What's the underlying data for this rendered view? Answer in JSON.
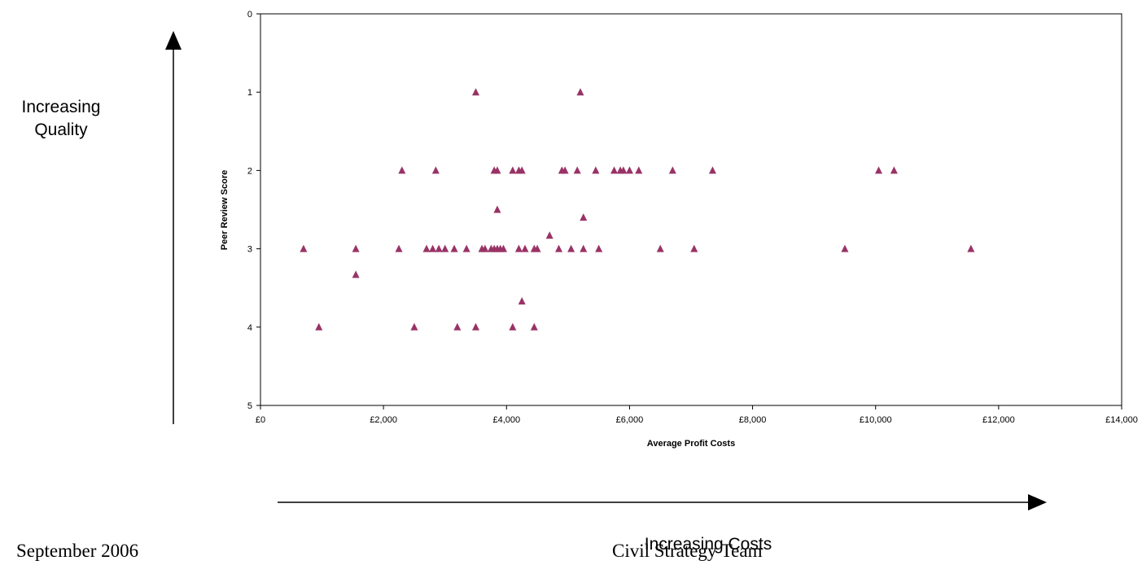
{
  "annotations": {
    "quality_label_line1": "Increasing",
    "quality_label_line2": "Quality",
    "costs_label": "Increasing Costs"
  },
  "footer": {
    "date": "September 2006",
    "team": "Civil Strategy Team"
  },
  "chart_data": {
    "type": "scatter",
    "xlabel": "Average Profit Costs",
    "ylabel": "Peer Review Score",
    "xlim": [
      0,
      14000
    ],
    "ylim": [
      0,
      5
    ],
    "y_reversed": true,
    "grid": false,
    "legend": "none",
    "marker": "triangle",
    "marker_color": "#993366",
    "x_ticks": [
      0,
      2000,
      4000,
      6000,
      8000,
      10000,
      12000,
      14000
    ],
    "x_tick_labels": [
      "£0",
      "£2,000",
      "£4,000",
      "£6,000",
      "£8,000",
      "£10,000",
      "£12,000",
      "£14,000"
    ],
    "y_ticks": [
      0,
      1,
      2,
      3,
      4,
      5
    ],
    "y_tick_labels": [
      "0",
      "1",
      "2",
      "3",
      "4",
      "5"
    ],
    "points": [
      {
        "x": 3500,
        "y": 1
      },
      {
        "x": 5200,
        "y": 1
      },
      {
        "x": 2300,
        "y": 2
      },
      {
        "x": 2850,
        "y": 2
      },
      {
        "x": 3800,
        "y": 2
      },
      {
        "x": 3850,
        "y": 2
      },
      {
        "x": 4100,
        "y": 2
      },
      {
        "x": 4200,
        "y": 2
      },
      {
        "x": 4250,
        "y": 2
      },
      {
        "x": 4900,
        "y": 2
      },
      {
        "x": 4950,
        "y": 2
      },
      {
        "x": 5150,
        "y": 2
      },
      {
        "x": 5450,
        "y": 2
      },
      {
        "x": 5750,
        "y": 2
      },
      {
        "x": 5850,
        "y": 2
      },
      {
        "x": 5900,
        "y": 2
      },
      {
        "x": 6000,
        "y": 2
      },
      {
        "x": 6150,
        "y": 2
      },
      {
        "x": 6700,
        "y": 2
      },
      {
        "x": 7350,
        "y": 2
      },
      {
        "x": 10050,
        "y": 2
      },
      {
        "x": 10300,
        "y": 2
      },
      {
        "x": 3850,
        "y": 2.5
      },
      {
        "x": 5250,
        "y": 2.6
      },
      {
        "x": 4700,
        "y": 2.83
      },
      {
        "x": 700,
        "y": 3
      },
      {
        "x": 1550,
        "y": 3
      },
      {
        "x": 2250,
        "y": 3
      },
      {
        "x": 2700,
        "y": 3
      },
      {
        "x": 2800,
        "y": 3
      },
      {
        "x": 2900,
        "y": 3
      },
      {
        "x": 3000,
        "y": 3
      },
      {
        "x": 3150,
        "y": 3
      },
      {
        "x": 3350,
        "y": 3
      },
      {
        "x": 3600,
        "y": 3
      },
      {
        "x": 3650,
        "y": 3
      },
      {
        "x": 3750,
        "y": 3
      },
      {
        "x": 3800,
        "y": 3
      },
      {
        "x": 3850,
        "y": 3
      },
      {
        "x": 3900,
        "y": 3
      },
      {
        "x": 3950,
        "y": 3
      },
      {
        "x": 4200,
        "y": 3
      },
      {
        "x": 4300,
        "y": 3
      },
      {
        "x": 4450,
        "y": 3
      },
      {
        "x": 4500,
        "y": 3
      },
      {
        "x": 4850,
        "y": 3
      },
      {
        "x": 5050,
        "y": 3
      },
      {
        "x": 5250,
        "y": 3
      },
      {
        "x": 5500,
        "y": 3
      },
      {
        "x": 6500,
        "y": 3
      },
      {
        "x": 7050,
        "y": 3
      },
      {
        "x": 9500,
        "y": 3
      },
      {
        "x": 11550,
        "y": 3
      },
      {
        "x": 1550,
        "y": 3.33
      },
      {
        "x": 4250,
        "y": 3.67
      },
      {
        "x": 950,
        "y": 4
      },
      {
        "x": 2500,
        "y": 4
      },
      {
        "x": 3200,
        "y": 4
      },
      {
        "x": 3500,
        "y": 4
      },
      {
        "x": 4100,
        "y": 4
      },
      {
        "x": 4450,
        "y": 4
      }
    ]
  }
}
